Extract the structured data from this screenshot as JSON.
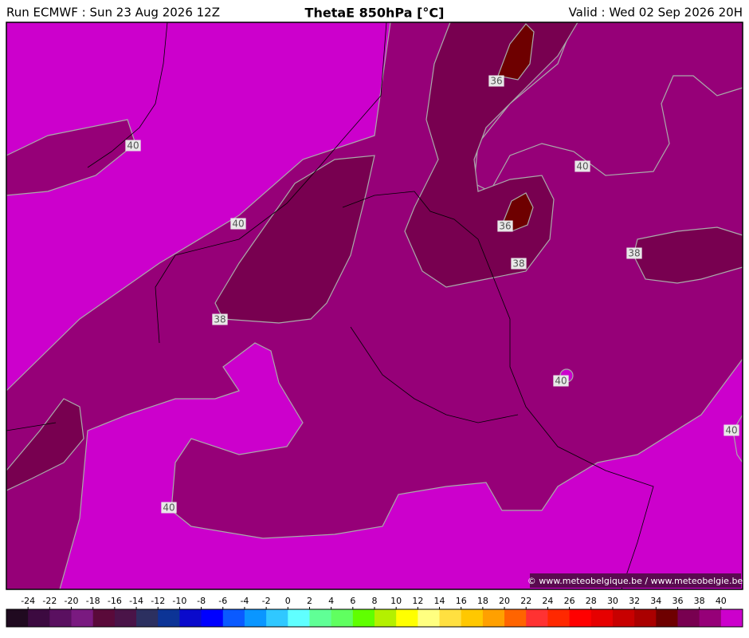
{
  "header": {
    "run": "Run ECMWF : Sun 23 Aug 2026 12Z",
    "title": "ThetaE 850hPa [°C]",
    "valid": "Valid : Wed 02 Sep 2026 20H"
  },
  "map": {
    "contour_labels": [
      "40",
      "40",
      "38",
      "36",
      "40",
      "36",
      "38",
      "38",
      "40",
      "40",
      "40"
    ],
    "credit": "© www.meteobelgique.be / www.meteobelgie.be"
  },
  "colorbar": {
    "ticks": [
      -24,
      -22,
      -20,
      -18,
      -16,
      -14,
      -12,
      -10,
      -8,
      -6,
      -4,
      -2,
      0,
      2,
      4,
      6,
      8,
      10,
      12,
      14,
      16,
      18,
      20,
      22,
      24,
      26,
      28,
      30,
      32,
      34,
      36,
      38,
      40
    ],
    "colors": [
      "#200a20",
      "#3c0a40",
      "#5a1060",
      "#7a1a80",
      "#5a0a3a",
      "#4a1448",
      "#2c3060",
      "#0c3496",
      "#0a0acc",
      "#0000ff",
      "#0a5aff",
      "#0a96ff",
      "#30c8ff",
      "#60ffff",
      "#60ff96",
      "#60ff60",
      "#60ff00",
      "#b4f000",
      "#ffff00",
      "#ffff80",
      "#ffe040",
      "#ffc800",
      "#ffa000",
      "#ff6400",
      "#ff3232",
      "#ff2800",
      "#ff0000",
      "#e60000",
      "#c80000",
      "#aa0000",
      "#6e0000",
      "#780050",
      "#960078",
      "#cc00cc"
    ]
  }
}
